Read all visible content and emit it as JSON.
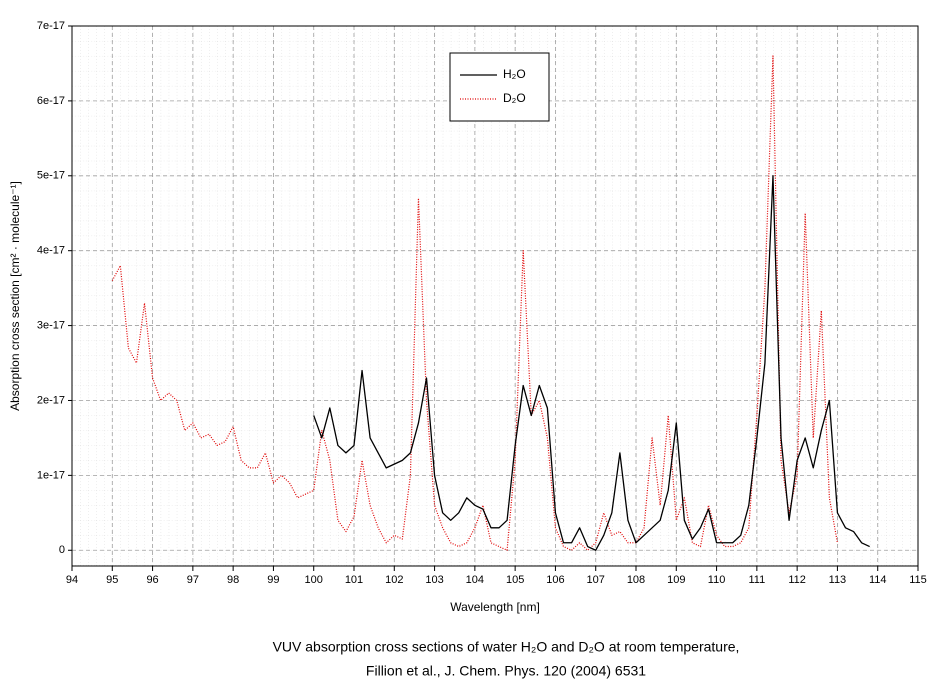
{
  "chart_data": {
    "type": "line",
    "x_label": "Wavelength [nm]",
    "y_label": "Absorption cross section [cm² · molecule⁻¹]",
    "caption": [
      "VUV absorption cross sections of water H₂O and D₂O at room temperature,",
      "Fillion et al., J. Chem. Phys. 120 (2004) 6531"
    ],
    "xlim": [
      94,
      115
    ],
    "xticks": [
      94,
      95,
      96,
      97,
      98,
      99,
      100,
      101,
      102,
      103,
      104,
      105,
      106,
      107,
      108,
      109,
      110,
      111,
      112,
      113,
      114,
      115
    ],
    "ylim": [
      -2.1e-18,
      7e-17
    ],
    "yticks": [
      0,
      1e-17,
      2e-17,
      3e-17,
      4e-17,
      5e-17,
      6e-17,
      7e-17
    ],
    "grid": true,
    "legend": "top-center",
    "x": [
      95,
      95.2,
      95.4,
      95.6,
      95.8,
      96,
      96.2,
      96.4,
      96.6,
      96.8,
      97,
      97.2,
      97.4,
      97.6,
      97.8,
      98,
      98.2,
      98.4,
      98.6,
      98.8,
      99,
      99.2,
      99.4,
      99.6,
      99.8,
      100,
      100.2,
      100.4,
      100.6,
      100.8,
      101,
      101.2,
      101.4,
      101.6,
      101.8,
      102,
      102.2,
      102.4,
      102.6,
      102.8,
      103,
      103.2,
      103.4,
      103.6,
      103.8,
      104,
      104.2,
      104.4,
      104.6,
      104.8,
      105,
      105.2,
      105.4,
      105.6,
      105.8,
      106,
      106.2,
      106.4,
      106.6,
      106.8,
      107,
      107.2,
      107.4,
      107.6,
      107.8,
      108,
      108.2,
      108.4,
      108.6,
      108.8,
      109,
      109.2,
      109.4,
      109.6,
      109.8,
      110,
      110.2,
      110.4,
      110.6,
      110.8,
      111,
      111.2,
      111.4,
      111.6,
      111.8,
      112,
      112.2,
      112.4,
      112.6,
      112.8,
      113,
      113.2,
      113.4,
      113.6,
      113.8,
      114
    ],
    "series": [
      {
        "name": "H₂O",
        "color": "#000000",
        "style": "solid",
        "values": [
          null,
          null,
          null,
          null,
          null,
          null,
          null,
          null,
          null,
          null,
          null,
          null,
          null,
          null,
          null,
          null,
          null,
          null,
          null,
          null,
          null,
          null,
          null,
          null,
          null,
          1.8e-17,
          1.5e-17,
          1.9e-17,
          1.4e-17,
          1.3e-17,
          1.4e-17,
          2.4e-17,
          1.5e-17,
          1.3e-17,
          1.1e-17,
          1.15e-17,
          1.2e-17,
          1.3e-17,
          1.7e-17,
          2.3e-17,
          1e-17,
          5e-18,
          4e-18,
          5e-18,
          7e-18,
          6e-18,
          5.5e-18,
          3e-18,
          3e-18,
          4e-18,
          1.4e-17,
          2.2e-17,
          1.8e-17,
          2.2e-17,
          1.9e-17,
          5e-18,
          1e-18,
          1e-18,
          3e-18,
          5e-19,
          0,
          2e-18,
          5e-18,
          1.3e-17,
          4e-18,
          1e-18,
          2e-18,
          3e-18,
          4e-18,
          8e-18,
          1.7e-17,
          4e-18,
          1.5e-18,
          3e-18,
          5.5e-18,
          1e-18,
          1e-18,
          1e-18,
          2e-18,
          6e-18,
          1.5e-17,
          2.5e-17,
          5e-17,
          1.5e-17,
          4e-18,
          1.2e-17,
          1.5e-17,
          1.1e-17,
          1.6e-17,
          2e-17,
          5e-18,
          3e-18,
          2.5e-18,
          1e-18,
          5e-19,
          null
        ]
      },
      {
        "name": "D₂O",
        "color": "#e00000",
        "style": "dotted",
        "values": [
          3.6e-17,
          3.8e-17,
          2.7e-17,
          2.5e-17,
          3.3e-17,
          2.3e-17,
          2e-17,
          2.1e-17,
          2e-17,
          1.6e-17,
          1.7e-17,
          1.5e-17,
          1.55e-17,
          1.4e-17,
          1.45e-17,
          1.65e-17,
          1.2e-17,
          1.1e-17,
          1.1e-17,
          1.3e-17,
          9e-18,
          1e-17,
          9e-18,
          7e-18,
          7.5e-18,
          8e-18,
          1.6e-17,
          1.2e-17,
          4e-18,
          2.5e-18,
          4.5e-18,
          1.2e-17,
          6e-18,
          3e-18,
          1e-18,
          2e-18,
          1.5e-18,
          1e-17,
          4.7e-17,
          2e-17,
          6e-18,
          3e-18,
          1e-18,
          5e-19,
          1e-18,
          3e-18,
          6e-18,
          1e-18,
          5e-19,
          0,
          1.2e-17,
          4e-17,
          1.8e-17,
          2e-17,
          1.5e-17,
          3e-18,
          5e-19,
          0,
          1e-18,
          0,
          1e-18,
          5e-18,
          2e-18,
          2.5e-18,
          1e-18,
          1e-18,
          3e-18,
          1.5e-17,
          6e-18,
          1.8e-17,
          4e-18,
          7e-18,
          1e-18,
          5e-19,
          6e-18,
          2e-18,
          5e-19,
          5e-19,
          1e-18,
          3e-18,
          1.8e-17,
          3.5e-17,
          6.6e-17,
          1.2e-17,
          5e-18,
          1e-17,
          4.5e-17,
          1.5e-17,
          3.2e-17,
          7e-18,
          1e-18,
          null,
          null,
          null,
          null,
          null
        ]
      }
    ]
  }
}
